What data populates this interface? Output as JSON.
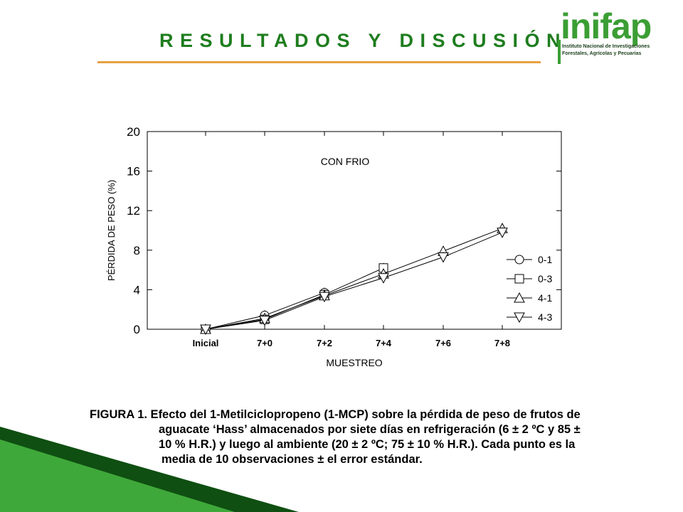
{
  "header": {
    "title": "RESULTADOS Y DISCUSIÓN",
    "logo": {
      "word": "inifap",
      "lines": [
        "Instituto Nacional de Investigaciones",
        "Forestales, Agrícolas y Pecuarias"
      ]
    }
  },
  "colors": {
    "title": "#1e7d1e",
    "rule": "#e8a043",
    "logo_green": "#3b9e34",
    "corner_dark": "#0f4f12",
    "corner_light": "#3fa83a"
  },
  "chart_data": {
    "type": "line",
    "annotation": "CON FRIO",
    "xlabel": "MUESTREO",
    "ylabel": "PÉRDIDA DE PESO (%)",
    "categories": [
      "Inicial",
      "7+0",
      "7+2",
      "7+4",
      "7+6",
      "7+8"
    ],
    "ylim": [
      0,
      20
    ],
    "yticks": [
      0,
      4,
      8,
      12,
      16,
      20
    ],
    "legend_position": "bottom-right",
    "grid": false,
    "series": [
      {
        "name": "0-1",
        "marker": "circle",
        "values": [
          0,
          1.4,
          3.7,
          null,
          null,
          null
        ]
      },
      {
        "name": "0-3",
        "marker": "square",
        "values": [
          0,
          1.0,
          3.5,
          6.2,
          null,
          null
        ]
      },
      {
        "name": "4-1",
        "marker": "triangle-up",
        "values": [
          0,
          1.1,
          3.4,
          5.6,
          7.9,
          10.2
        ]
      },
      {
        "name": "4-3",
        "marker": "triangle-down",
        "values": [
          0,
          0.9,
          3.3,
          5.2,
          7.3,
          9.8
        ]
      }
    ]
  },
  "caption": {
    "lines": [
      "FIGURA 1. Efecto del 1-Metilciclopropeno (1-MCP) sobre la pérdida de peso de frutos de",
      "aguacate ‘Hass’ almacenados por siete días en refrigeración (6 ± 2 ºC y 85 ±",
      "10 % H.R.) y luego al ambiente (20 ± 2 ºC; 75 ± 10 % H.R.). Cada punto es la",
      "media de 10 observaciones ± el error estándar."
    ]
  }
}
